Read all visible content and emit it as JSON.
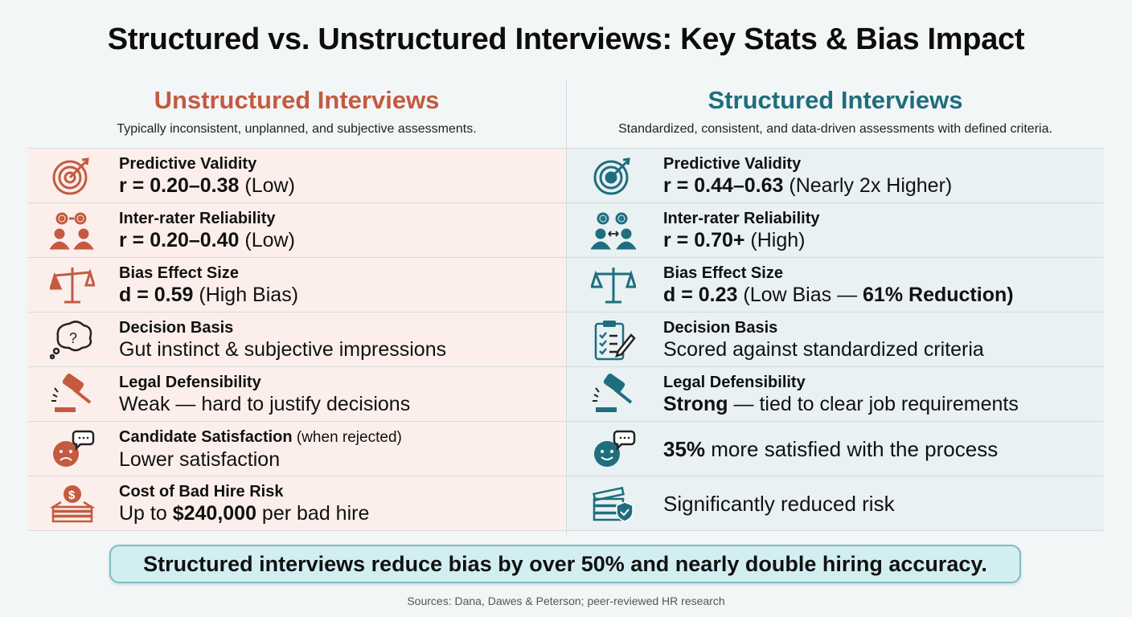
{
  "title": "Structured vs. Unstructured Interviews: Key Stats & Bias Impact",
  "colors": {
    "unstructured_accent": "#c45a40",
    "structured_accent": "#1e6e7e",
    "banner_bg": "#d2eef0"
  },
  "unstructured": {
    "heading": "Unstructured Interviews",
    "subheading": "Typically inconsistent, unplanned, and subjective assessments.",
    "rows": [
      {
        "icon": "target-icon",
        "label": "Predictive Validity",
        "value_bold": "r = 0.20–0.38",
        "value_rest": " (Low)"
      },
      {
        "icon": "gears-people-icon",
        "label": "Inter-rater Reliability",
        "value_bold": "r = 0.20–0.40",
        "value_rest": " (Low)"
      },
      {
        "icon": "scales-icon",
        "label": "Bias Effect Size",
        "value_bold": "d = 0.59",
        "value_rest": " (High Bias)"
      },
      {
        "icon": "thought-question-icon",
        "label": "Decision Basis",
        "value": "Gut instinct & subjective impressions"
      },
      {
        "icon": "gavel-icon",
        "label": "Legal Defensibility",
        "value": "Weak — hard to justify decisions"
      },
      {
        "icon": "sad-face-chat-icon",
        "label": "Candidate Satisfaction",
        "label_note": " (when rejected)",
        "value": "Lower satisfaction"
      },
      {
        "icon": "money-stack-icon",
        "label": "Cost of Bad Hire Risk",
        "value_pre": "Up to ",
        "value_bold": "$240,000",
        "value_rest": " per bad hire"
      }
    ]
  },
  "structured": {
    "heading": "Structured Interviews",
    "subheading": "Standardized, consistent, and data-driven assessments with defined criteria.",
    "rows": [
      {
        "icon": "target-icon",
        "label": "Predictive Validity",
        "value_bold": "r = 0.44–0.63",
        "value_rest": " (Nearly 2x Higher)"
      },
      {
        "icon": "gears-people-icon",
        "label": "Inter-rater Reliability",
        "value_bold": "r = 0.70+",
        "value_rest": " (High)"
      },
      {
        "icon": "scales-icon",
        "label": "Bias Effect Size",
        "value_bold": "d = 0.23",
        "value_rest": " (Low Bias — ",
        "value_bold2": "61% Reduction)"
      },
      {
        "icon": "clipboard-checklist-icon",
        "label": "Decision Basis",
        "value": "Scored against standardized criteria"
      },
      {
        "icon": "gavel-icon",
        "label": "Legal Defensibility",
        "value_bold": "Strong",
        "value_rest": " — tied to clear job requirements"
      },
      {
        "icon": "happy-face-chat-icon",
        "value_bold": "35%",
        "value_rest": " more satisfied with the process"
      },
      {
        "icon": "money-shield-icon",
        "value": "Significantly reduced risk"
      }
    ]
  },
  "banner": "Structured interviews reduce bias by over 50% and nearly double hiring accuracy.",
  "sources": "Sources: Dana, Dawes & Peterson; peer-reviewed HR research"
}
